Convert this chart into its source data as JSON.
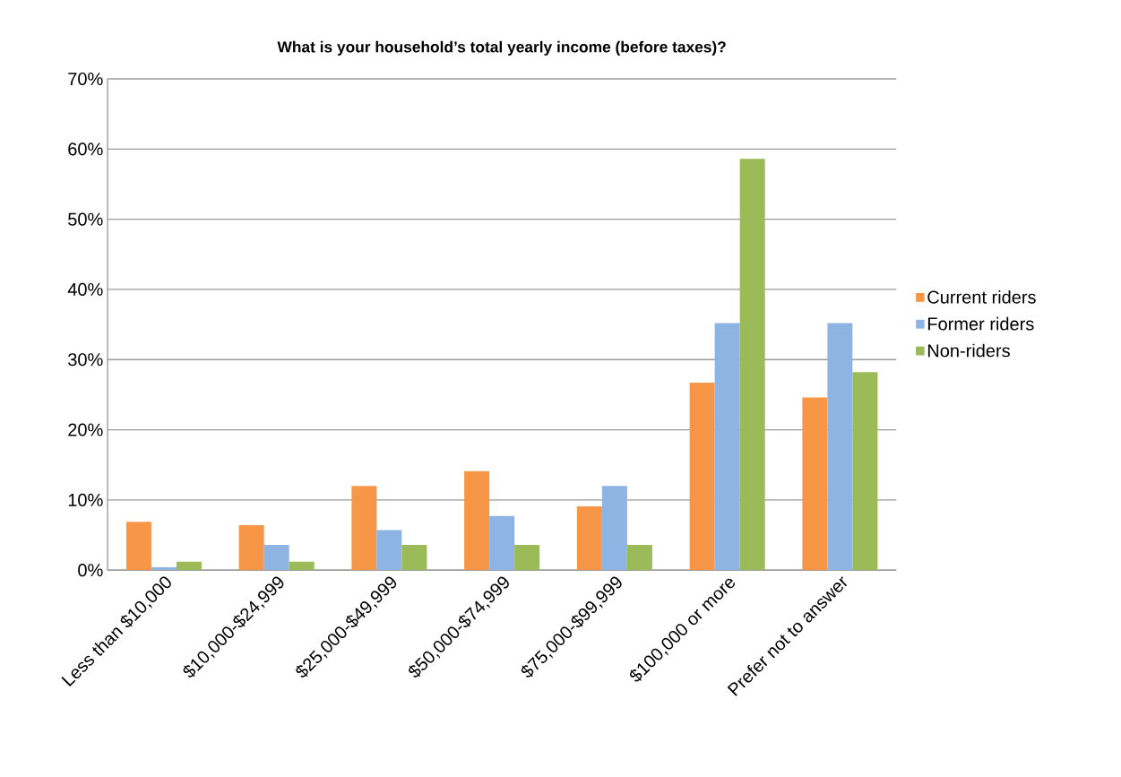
{
  "chart_data": {
    "type": "bar",
    "title": "What is your household’s total yearly income (before taxes)?",
    "categories": [
      "Less than $10,000",
      "$10,000-$24,999",
      "$25,000-$49,999",
      "$50,000-$74,999",
      "$75,000-$99,999",
      "$100,000 or more",
      "Prefer not to answer"
    ],
    "series": [
      {
        "name": "Current riders",
        "color": "#f79646",
        "values": [
          6.9,
          6.4,
          12.0,
          14.1,
          9.1,
          26.7,
          24.6
        ]
      },
      {
        "name": "Former riders",
        "color": "#8eb4e3",
        "values": [
          0.4,
          3.6,
          5.7,
          7.7,
          12.0,
          35.2,
          35.2
        ]
      },
      {
        "name": "Non-riders",
        "color": "#9bbb59",
        "values": [
          1.2,
          1.2,
          3.6,
          3.6,
          3.6,
          58.6,
          28.2
        ]
      }
    ],
    "ylim": [
      0,
      70
    ],
    "yticks": [
      {
        "value": 0,
        "label": "0%"
      },
      {
        "value": 10,
        "label": "10%"
      },
      {
        "value": 20,
        "label": "20%"
      },
      {
        "value": 30,
        "label": "30%"
      },
      {
        "value": 40,
        "label": "40%"
      },
      {
        "value": 50,
        "label": "50%"
      },
      {
        "value": 60,
        "label": "60%"
      },
      {
        "value": 70,
        "label": "70%"
      }
    ],
    "grid": "y",
    "legend": "right"
  }
}
